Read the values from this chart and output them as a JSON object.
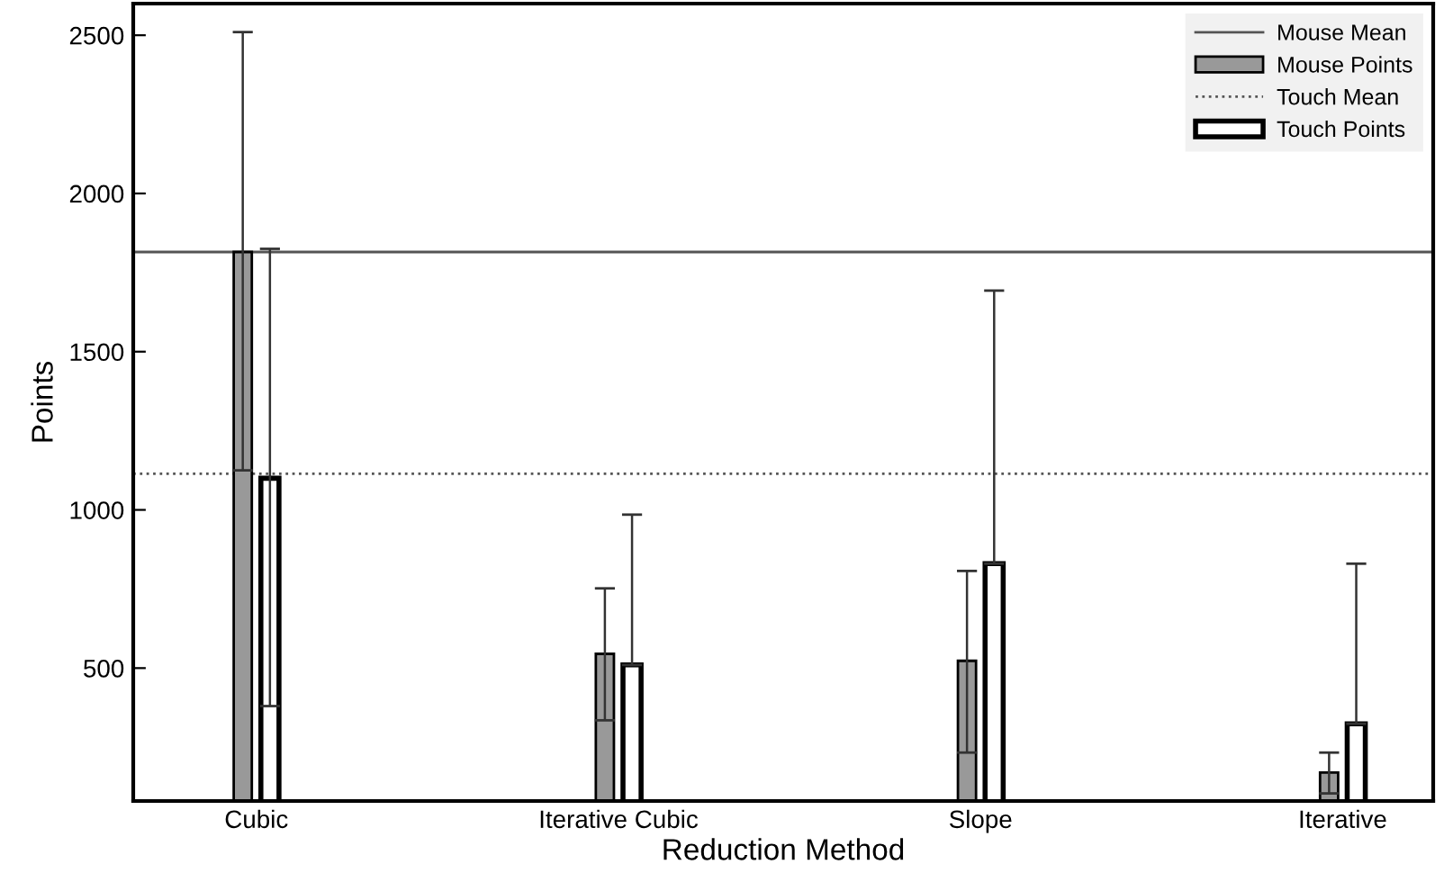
{
  "chart_data": {
    "type": "bar",
    "xlabel": "Reduction Method",
    "ylabel": "Points",
    "categories": [
      "Cubic",
      "Iterative Cubic",
      "Slope",
      "Iterative"
    ],
    "series": [
      {
        "name": "Mouse Points",
        "color": "#999999",
        "values": [
          1815,
          545,
          523,
          170
        ],
        "errors": [
          [
            1125,
            2510
          ],
          [
            335,
            752
          ],
          [
            233,
            807
          ],
          [
            104,
            233
          ]
        ]
      },
      {
        "name": "Touch Points",
        "color": "#ffffff",
        "values": [
          1100,
          510,
          830,
          324
        ],
        "errors": [
          [
            380,
            1825
          ],
          [
            510,
            985
          ],
          [
            830,
            1693
          ],
          [
            324,
            830
          ]
        ]
      }
    ],
    "ylim": [
      80,
      2600
    ],
    "yticks": [
      500,
      1000,
      1500,
      2000,
      2500
    ],
    "ref_lines": [
      {
        "axis": "y",
        "value": 1815,
        "label": "Mouse Mean",
        "color": "#555555",
        "line_style": "solid"
      },
      {
        "axis": "y",
        "value": 1114,
        "label": "Touch Mean",
        "color": "#555555",
        "line_style": "dotted"
      }
    ],
    "legend": "top right",
    "grid": false
  }
}
